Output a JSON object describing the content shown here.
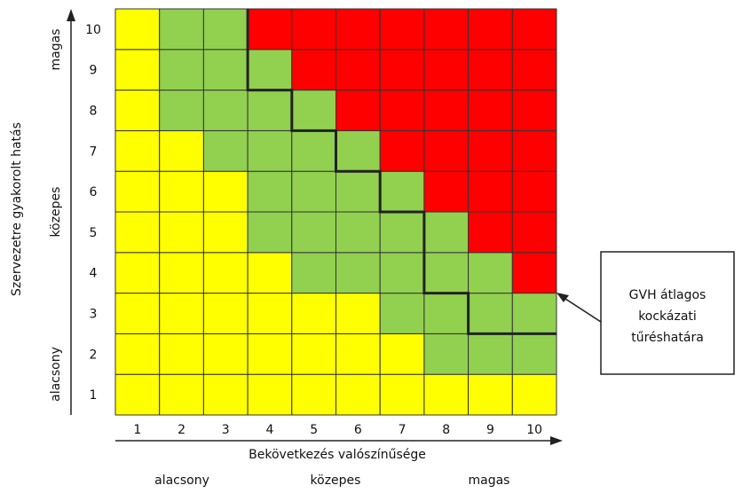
{
  "chart_data": {
    "type": "heatmap",
    "xlabel": "Bekövetkezés valószínűsége",
    "ylabel": "Szervezetre gyakorolt hatás",
    "x_categories": [
      "1",
      "2",
      "3",
      "4",
      "5",
      "6",
      "7",
      "8",
      "9",
      "10"
    ],
    "y_categories": [
      "1",
      "2",
      "3",
      "4",
      "5",
      "6",
      "7",
      "8",
      "9",
      "10"
    ],
    "x_bands": [
      "alacsony",
      "közepes",
      "magas"
    ],
    "y_bands": [
      "alacsony",
      "közepes",
      "magas"
    ],
    "colors": {
      "Y": "#ffff00",
      "G": "#92d050",
      "R": "#ff0000"
    },
    "grid": [
      "YYYYYYYYYY",
      "YYYYYYYGGG",
      "YYYYYYGGGG",
      "YYYYGGGGGR",
      "YYYGGGGGRR",
      "YYYGGGGRRR",
      "YYGGGGRRRR",
      "YGGGGRRRRR",
      "YGGGRRRRRR",
      "YGGRRRRRRR"
    ],
    "tolerance_boundary": [
      3,
      3,
      4,
      5,
      6,
      7,
      7,
      8
    ],
    "annotation": [
      "GVH átlagos",
      "kockázati",
      "tűréshatára"
    ]
  }
}
